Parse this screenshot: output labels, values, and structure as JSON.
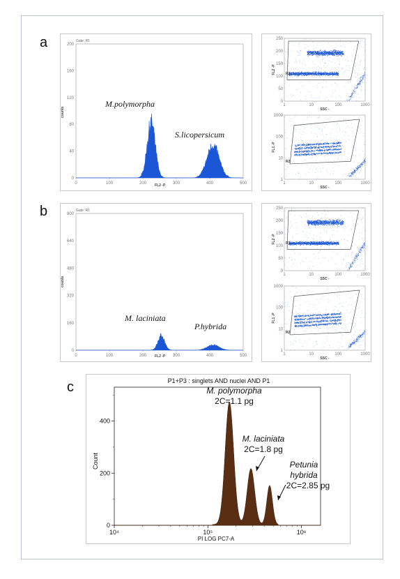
{
  "panel_letters": {
    "a": "a",
    "b": "b",
    "c": "c"
  },
  "chart_data": [
    {
      "id": "a-histogram",
      "type": "area",
      "gate": "Gate: R1",
      "xlabel": "FL2 -P",
      "ylabel": "counts",
      "xlim": [
        0,
        500
      ],
      "ylim": [
        0,
        200
      ],
      "xticks": [
        "0",
        "100",
        "200",
        "300",
        "400",
        "500"
      ],
      "yticks": [
        "0",
        "40",
        "80",
        "120",
        "160",
        "200"
      ],
      "peaks": [
        {
          "name": "M.polymorpha",
          "center": 225,
          "width": 12,
          "height": 82
        },
        {
          "name": "S.licopersicum",
          "center": 410,
          "width": 18,
          "height": 48
        }
      ],
      "color": "#1a56d6"
    },
    {
      "id": "a-scatter-top",
      "type": "scatter",
      "xlabel": "SSC -",
      "ylabel": "FL2 -P",
      "xscale": "log",
      "xticks": [
        "1",
        "10",
        "100",
        "1000"
      ],
      "yticks": [
        "0",
        "50",
        "100",
        "150",
        "200",
        "250"
      ],
      "gate_label": "R1",
      "clusters": [
        {
          "ssc": 40,
          "y": 200
        },
        {
          "ssc": 30,
          "y": 110
        }
      ],
      "color": "#1a56d6"
    },
    {
      "id": "a-scatter-bottom",
      "type": "scatter",
      "xlabel": "SSC -",
      "ylabel": "FL1 -P",
      "xscale": "log",
      "yscale": "log",
      "xticks": [
        "1",
        "10",
        "100",
        "1000"
      ],
      "yticks": [
        "1",
        "10",
        "100",
        "1000"
      ],
      "gate_label": "R2",
      "color": "#1a56d6"
    },
    {
      "id": "b-histogram",
      "type": "area",
      "gate": "Gate: R1",
      "xlabel": "FL2 -P",
      "ylabel": "counts",
      "xlim": [
        0,
        500
      ],
      "ylim": [
        0,
        800
      ],
      "xticks": [
        "0",
        "100",
        "200",
        "300",
        "400",
        "500"
      ],
      "yticks": [
        "0",
        "160",
        "320",
        "480",
        "640",
        "800"
      ],
      "peaks": [
        {
          "name": "M. laciniata",
          "center": 255,
          "width": 10,
          "height": 85
        },
        {
          "name": "P.hybrida",
          "center": 410,
          "width": 18,
          "height": 30
        }
      ],
      "color": "#1a56d6"
    },
    {
      "id": "b-scatter-top",
      "type": "scatter",
      "xlabel": "SSC -",
      "ylabel": "FL2 -P",
      "xscale": "log",
      "xticks": [
        "1",
        "10",
        "100",
        "1000"
      ],
      "yticks": [
        "0",
        "50",
        "100",
        "150",
        "200",
        "250"
      ],
      "gate_label": "R1",
      "color": "#1a56d6"
    },
    {
      "id": "b-scatter-bottom",
      "type": "scatter",
      "xlabel": "SSC -",
      "ylabel": "FL1 -P",
      "xscale": "log",
      "yscale": "log",
      "xticks": [
        "1",
        "10",
        "100",
        "1000"
      ],
      "yticks": [
        "1",
        "10",
        "100",
        "1000"
      ],
      "gate_label": "R2",
      "color": "#1a56d6"
    },
    {
      "id": "c-histogram",
      "type": "area",
      "title": "P1+P3 : singlets AND nuclei AND P1",
      "xlabel": "PI LOG PC7-A",
      "ylabel": "Count",
      "xscale": "log",
      "xlim": [
        10000,
        1600000
      ],
      "ylim": [
        0,
        530
      ],
      "xticks": [
        "10⁴",
        "10⁵",
        "10⁶"
      ],
      "yticks": [
        "0",
        "200",
        "400"
      ],
      "peaks": [
        {
          "name": "M. polymorpha",
          "label": "2C=1.1 pg",
          "log_center": 5.23,
          "log_width": 0.045,
          "height": 470
        },
        {
          "name": "M. laciniata",
          "label": "2C=1.8 pg",
          "log_center": 5.46,
          "log_width": 0.04,
          "height": 215
        },
        {
          "name": "Petunia hybrida",
          "label": "2C=2.85 pg",
          "log_center": 5.66,
          "log_width": 0.03,
          "height": 150
        }
      ],
      "color": "#5a2e12"
    }
  ],
  "labels": {
    "a_peak1": "M.polymorpha",
    "a_peak2": "S.licopersicum",
    "b_peak1": "M. laciniata",
    "b_peak2": "P.hybrida",
    "c_peak1_name": "M. polymorpha",
    "c_peak1_c": "2C=1.1 pg",
    "c_peak2_name": "M. laciniata",
    "c_peak2_c": "2C=1.8 pg",
    "c_peak3_name1": "Petunia",
    "c_peak3_name2": "hybrida",
    "c_peak3_c": "2C=2.85 pg"
  }
}
